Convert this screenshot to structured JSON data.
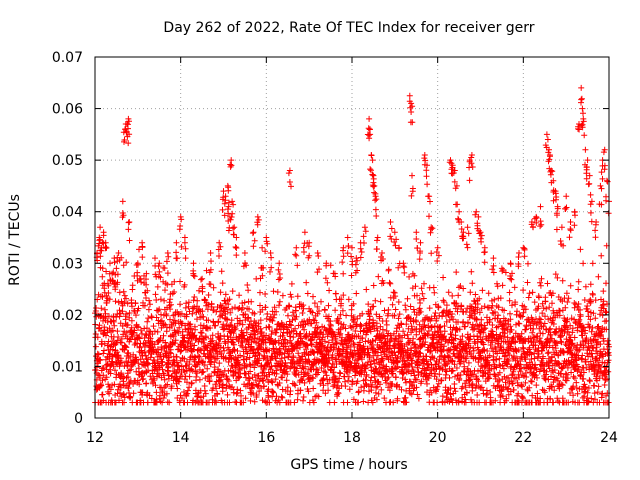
{
  "chart_data": {
    "type": "scatter",
    "title": "Day 262 of 2022, Rate Of TEC Index for receiver gerr",
    "xlabel": "GPS time / hours",
    "ylabel": "ROTI / TECUs",
    "xlim": [
      12,
      24
    ],
    "ylim": [
      0,
      0.07
    ],
    "x_ticks": [
      "12",
      "14",
      "16",
      "18",
      "20",
      "22",
      "24"
    ],
    "y_ticks": [
      "0",
      "0.01",
      "0.02",
      "0.03",
      "0.04",
      "0.05",
      "0.06",
      "0.07"
    ],
    "grid": true,
    "marker": "plus",
    "color": "#ff0000",
    "series": [
      {
        "values": [
          [
            12.05,
            0.032
          ],
          [
            12.1,
            0.035
          ],
          [
            12.12,
            0.037
          ],
          [
            12.15,
            0.033
          ],
          [
            12.2,
            0.036
          ],
          [
            12.25,
            0.034
          ],
          [
            12.3,
            0.026
          ],
          [
            12.35,
            0.03
          ],
          [
            12.4,
            0.028
          ],
          [
            12.45,
            0.031
          ],
          [
            12.5,
            0.029
          ],
          [
            12.55,
            0.032
          ],
          [
            12.65,
            0.042
          ],
          [
            12.7,
            0.056
          ],
          [
            12.72,
            0.057
          ],
          [
            12.75,
            0.057
          ],
          [
            12.78,
            0.058
          ],
          [
            12.8,
            0.038
          ],
          [
            13.0,
            0.03
          ],
          [
            13.1,
            0.034
          ],
          [
            13.2,
            0.028
          ],
          [
            13.4,
            0.031
          ],
          [
            13.5,
            0.03
          ],
          [
            13.7,
            0.032
          ],
          [
            13.9,
            0.034
          ],
          [
            14.0,
            0.039
          ],
          [
            14.1,
            0.035
          ],
          [
            14.3,
            0.03
          ],
          [
            14.5,
            0.027
          ],
          [
            14.7,
            0.032
          ],
          [
            14.9,
            0.034
          ],
          [
            15.0,
            0.044
          ],
          [
            15.05,
            0.043
          ],
          [
            15.1,
            0.045
          ],
          [
            15.12,
            0.041
          ],
          [
            15.15,
            0.039
          ],
          [
            15.18,
            0.05
          ],
          [
            15.2,
            0.042
          ],
          [
            15.25,
            0.037
          ],
          [
            15.3,
            0.035
          ],
          [
            15.5,
            0.032
          ],
          [
            15.7,
            0.036
          ],
          [
            15.8,
            0.039
          ],
          [
            15.9,
            0.033
          ],
          [
            16.0,
            0.035
          ],
          [
            16.1,
            0.032
          ],
          [
            16.3,
            0.03
          ],
          [
            16.55,
            0.048
          ],
          [
            16.7,
            0.033
          ],
          [
            16.9,
            0.036
          ],
          [
            17.0,
            0.034
          ],
          [
            17.2,
            0.032
          ],
          [
            17.4,
            0.03
          ],
          [
            17.6,
            0.028
          ],
          [
            17.8,
            0.033
          ],
          [
            17.9,
            0.035
          ],
          [
            18.0,
            0.033
          ],
          [
            18.1,
            0.031
          ],
          [
            18.2,
            0.034
          ],
          [
            18.3,
            0.037
          ],
          [
            18.4,
            0.058
          ],
          [
            18.42,
            0.056
          ],
          [
            18.45,
            0.051
          ],
          [
            18.48,
            0.05
          ],
          [
            18.5,
            0.047
          ],
          [
            18.52,
            0.045
          ],
          [
            18.55,
            0.043
          ],
          [
            18.6,
            0.035
          ],
          [
            18.7,
            0.032
          ],
          [
            18.9,
            0.038
          ],
          [
            19.0,
            0.036
          ],
          [
            19.1,
            0.033
          ],
          [
            19.2,
            0.03
          ],
          [
            19.35,
            0.0625
          ],
          [
            19.38,
            0.061
          ],
          [
            19.4,
            0.047
          ],
          [
            19.5,
            0.036
          ],
          [
            19.6,
            0.034
          ],
          [
            19.7,
            0.051
          ],
          [
            19.75,
            0.049
          ],
          [
            19.8,
            0.043
          ],
          [
            19.85,
            0.037
          ],
          [
            20.0,
            0.033
          ],
          [
            20.3,
            0.05
          ],
          [
            20.35,
            0.049
          ],
          [
            20.4,
            0.048
          ],
          [
            20.45,
            0.045
          ],
          [
            20.5,
            0.04
          ],
          [
            20.55,
            0.038
          ],
          [
            20.6,
            0.036
          ],
          [
            20.7,
            0.037
          ],
          [
            20.75,
            0.05
          ],
          [
            20.8,
            0.051
          ],
          [
            20.9,
            0.04
          ],
          [
            20.95,
            0.039
          ],
          [
            21.0,
            0.036
          ],
          [
            21.1,
            0.033
          ],
          [
            21.3,
            0.031
          ],
          [
            21.5,
            0.029
          ],
          [
            21.7,
            0.03
          ],
          [
            21.9,
            0.032
          ],
          [
            22.0,
            0.033
          ],
          [
            22.2,
            0.038
          ],
          [
            22.3,
            0.039
          ],
          [
            22.4,
            0.041
          ],
          [
            22.55,
            0.055
          ],
          [
            22.6,
            0.052
          ],
          [
            22.62,
            0.051
          ],
          [
            22.65,
            0.048
          ],
          [
            22.7,
            0.046
          ],
          [
            22.75,
            0.044
          ],
          [
            22.8,
            0.041
          ],
          [
            22.9,
            0.037
          ],
          [
            23.0,
            0.043
          ],
          [
            23.1,
            0.038
          ],
          [
            23.2,
            0.04
          ],
          [
            23.3,
            0.057
          ],
          [
            23.35,
            0.064
          ],
          [
            23.38,
            0.06
          ],
          [
            23.4,
            0.058
          ],
          [
            23.45,
            0.052
          ],
          [
            23.5,
            0.05
          ],
          [
            23.55,
            0.047
          ],
          [
            23.6,
            0.042
          ],
          [
            23.7,
            0.038
          ],
          [
            23.8,
            0.045
          ],
          [
            23.85,
            0.05
          ],
          [
            23.9,
            0.052
          ],
          [
            23.95,
            0.046
          ],
          [
            24.0,
            0.042
          ]
        ]
      }
    ],
    "dense_band": {
      "description_values": "bulk of points",
      "x_range": [
        12,
        24
      ],
      "y_core": [
        0.003,
        0.025
      ]
    }
  }
}
